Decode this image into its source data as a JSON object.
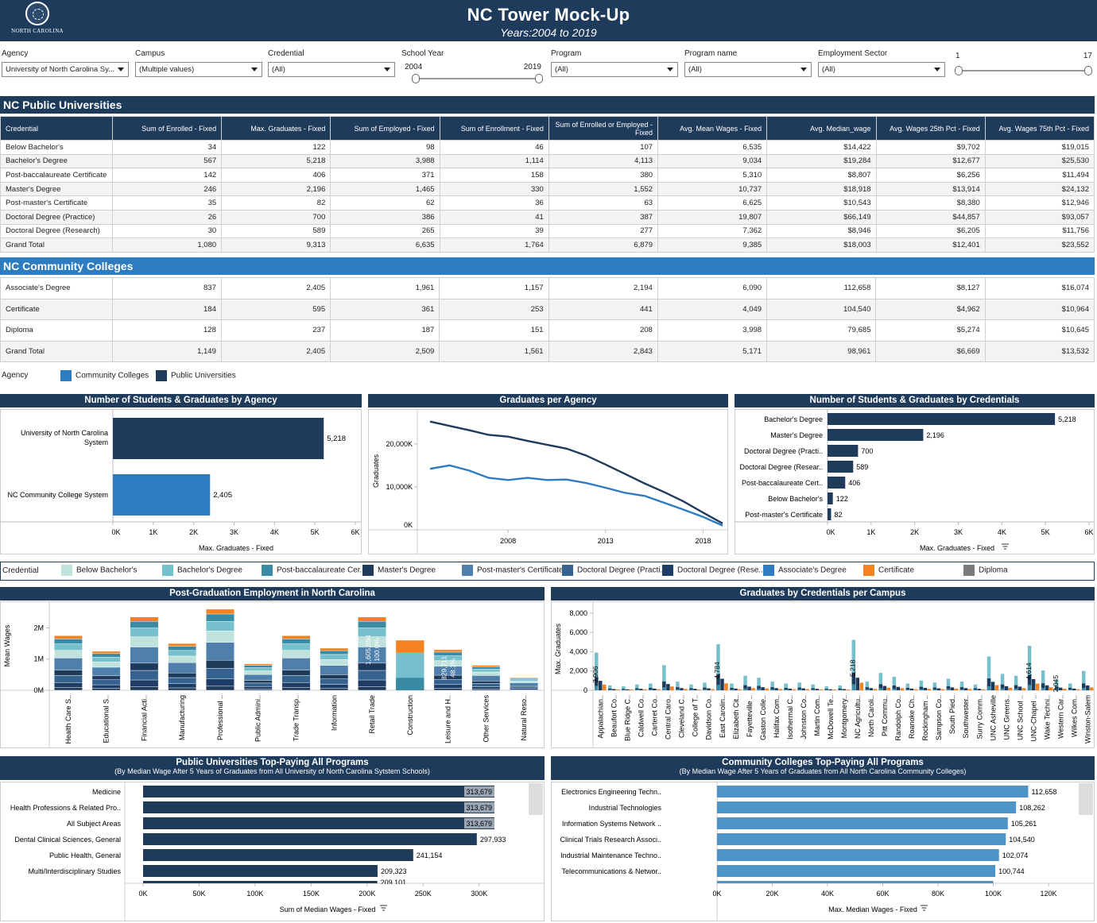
{
  "header": {
    "title": "NC Tower Mock-Up",
    "subtitle": "Years:2004 to 2019",
    "seal_text": "NORTH CAROLINA"
  },
  "filters": {
    "agency": {
      "label": "Agency",
      "value": "University of North Carolina Sy..."
    },
    "campus": {
      "label": "Campus",
      "value": "(Multiple values)"
    },
    "credential": {
      "label": "Credential",
      "value": "(All)"
    },
    "school_year": {
      "label": "School Year",
      "min": "2004",
      "max": "2019"
    },
    "program": {
      "label": "Program",
      "value": "(All)"
    },
    "program_name": {
      "label": "Program name",
      "value": "(All)"
    },
    "employment_sector": {
      "label": "Employment Sector",
      "value": "(All)"
    },
    "range": {
      "min": "1",
      "max": "17"
    }
  },
  "universities": {
    "title": "NC Public Universities",
    "headers": [
      "Credential",
      "Sum of Enrolled - Fixed",
      "Max. Graduates - Fixed",
      "Sum of Employed - Fixed",
      "Sum of Enrollment - Fixed",
      "Sum of Enrolled or Employed - Fixed",
      "Avg. Mean Wages - Fixed",
      "Avg. Median_wage",
      "Avg. Wages 25th Pct - Fixed",
      "Avg. Wages 75th Pct - Fixed"
    ],
    "rows": [
      [
        "Below Bachelor's",
        "34",
        "122",
        "98",
        "46",
        "107",
        "6,535",
        "$14,422",
        "$9,702",
        "$19,015"
      ],
      [
        "Bachelor's Degree",
        "567",
        "5,218",
        "3,988",
        "1,114",
        "4,113",
        "9,034",
        "$19,284",
        "$12,677",
        "$25,530"
      ],
      [
        "Post-baccalaureate Certificate",
        "142",
        "406",
        "371",
        "158",
        "380",
        "5,310",
        "$8,807",
        "$6,256",
        "$11,494"
      ],
      [
        "Master's Degree",
        "246",
        "2,196",
        "1,465",
        "330",
        "1,552",
        "10,737",
        "$18,918",
        "$13,914",
        "$24,132"
      ],
      [
        "Post-master's Certificate",
        "35",
        "82",
        "62",
        "36",
        "63",
        "6,625",
        "$10,543",
        "$8,380",
        "$12,946"
      ],
      [
        "Doctoral Degree (Practice)",
        "26",
        "700",
        "386",
        "41",
        "387",
        "19,807",
        "$66,149",
        "$44,857",
        "$93,057"
      ],
      [
        "Doctoral Degree (Research)",
        "30",
        "589",
        "265",
        "39",
        "277",
        "7,362",
        "$8,946",
        "$6,205",
        "$11,756"
      ],
      [
        "Grand Total",
        "1,080",
        "9,313",
        "6,635",
        "1,764",
        "6,879",
        "9,385",
        "$18,003",
        "$12,401",
        "$23,552"
      ]
    ]
  },
  "colleges": {
    "title": "NC Community Colleges",
    "rows": [
      [
        "Associate's Degree",
        "837",
        "2,405",
        "1,961",
        "1,157",
        "2,194",
        "6,090",
        "112,658",
        "$8,127",
        "$16,074"
      ],
      [
        "Certificate",
        "184",
        "595",
        "361",
        "253",
        "441",
        "4,049",
        "104,540",
        "$4,962",
        "$10,964"
      ],
      [
        "Diploma",
        "128",
        "237",
        "187",
        "151",
        "208",
        "3,998",
        "79,685",
        "$5,274",
        "$10,645"
      ],
      [
        "Grand Total",
        "1,149",
        "2,405",
        "2,509",
        "1,561",
        "2,843",
        "5,171",
        "98,961",
        "$6,669",
        "$13,532"
      ]
    ]
  },
  "agency_legend": {
    "label": "Agency",
    "items": [
      {
        "name": "Community Colleges",
        "color": "#2e7cc0"
      },
      {
        "name": "Public Universities",
        "color": "#1f3b5c"
      }
    ]
  },
  "credential_legend": {
    "label": "Credential",
    "items": [
      {
        "name": "Below Bachelor's",
        "color": "#bfe3dc"
      },
      {
        "name": "Bachelor's Degree",
        "color": "#76bfcc"
      },
      {
        "name": "Post-baccalaureate Cer...",
        "color": "#3a8aa4"
      },
      {
        "name": "Master's Degree",
        "color": "#1f3b5c"
      },
      {
        "name": "Post-master's Certificate",
        "color": "#4f7fab"
      },
      {
        "name": "Doctoral Degree (Practi...",
        "color": "#35628f"
      },
      {
        "name": "Doctoral Degree (Rese...",
        "color": "#1e3d66"
      },
      {
        "name": "Associate's Degree",
        "color": "#2e7cc0"
      },
      {
        "name": "Certificate",
        "color": "#f58220"
      },
      {
        "name": "Diploma",
        "color": "#7a7a7a"
      }
    ]
  },
  "chart_data": [
    {
      "id": "agency",
      "type": "bar",
      "title": "Number of Students & Graduates by Agency",
      "orientation": "horizontal",
      "categories": [
        "University of North Carolina System",
        "NC Community College System"
      ],
      "values": [
        5218,
        2405
      ],
      "labels": [
        "5,218",
        "2,405"
      ],
      "colors": [
        "#1f3b5c",
        "#2e7cc0"
      ],
      "xlabel": "Max. Graduates - Fixed",
      "ticks": [
        "0K",
        "1K",
        "2K",
        "3K",
        "4K",
        "5K",
        "6K"
      ],
      "xlim": [
        0,
        6000
      ]
    },
    {
      "id": "graduates",
      "type": "line",
      "title": "Graduates per Agency",
      "ylabel": "Graduates",
      "x": [
        2004,
        2005,
        2006,
        2007,
        2008,
        2009,
        2010,
        2011,
        2012,
        2013,
        2014,
        2015,
        2016,
        2017,
        2018,
        2019
      ],
      "series": [
        {
          "name": "Public Universities",
          "color": "#1f3b5c",
          "values": [
            25200,
            24200,
            23200,
            22100,
            21700,
            20700,
            19800,
            18900,
            17300,
            15200,
            13000,
            10800,
            8800,
            6600,
            4000,
            1500
          ]
        },
        {
          "name": "Community Colleges",
          "color": "#2e7cc0",
          "values": [
            14200,
            15000,
            13800,
            12100,
            11600,
            12100,
            11600,
            11700,
            10900,
            9800,
            8600,
            7900,
            6300,
            4700,
            3000,
            1000
          ]
        }
      ],
      "yticks": [
        "20,000K",
        "10,000K",
        "0K"
      ],
      "ytickvals": [
        20000,
        10000,
        0
      ],
      "xticks": [
        "2008",
        "2013",
        "2018"
      ],
      "ylim": [
        0,
        27000
      ]
    },
    {
      "id": "credentials",
      "type": "bar",
      "title": "Number of Students & Graduates by Credentials",
      "orientation": "horizontal",
      "categories": [
        "Bachelor's Degree",
        "Master's Degree",
        "Doctoral Degree (Practi..",
        "Doctoral Degree (Resear..",
        "Post-baccalaureate Cert..",
        "Below Bachelor's",
        "Post-master's Certificate"
      ],
      "values": [
        5218,
        2196,
        700,
        589,
        406,
        122,
        82
      ],
      "labels": [
        "5,218",
        "2,196",
        "700",
        "589",
        "406",
        "122",
        "82"
      ],
      "xlabel": "Max. Graduates - Fixed",
      "ticks": [
        "0K",
        "1K",
        "2K",
        "3K",
        "4K",
        "5K",
        "6K"
      ],
      "xlim": [
        0,
        6000
      ],
      "color": "#1f3b5c"
    },
    {
      "id": "employment",
      "type": "bar",
      "stacked": true,
      "title": "Post-Graduation Employment in North Carolina",
      "ylabel": "Mean Wages",
      "categories": [
        "Health Care S..",
        "Educational S..",
        "Financial Acti..",
        "Manufacturing",
        "Professional ..",
        "Public Admini..",
        "Trade Transp..",
        "Information",
        "Retail Trade",
        "Construction",
        "Leisure and H..",
        "Other Services",
        "Natural Reso.."
      ],
      "totals": [
        1.75,
        1.25,
        2.35,
        1.5,
        2.6,
        0.85,
        1.75,
        1.35,
        2.35,
        1.6,
        1.3,
        0.8,
        0.4
      ],
      "annotations": [
        {
          "category": "Retail Trade",
          "text1": "1,605,594",
          "text2": "100.0%"
        },
        {
          "category": "Leisure and H..",
          "text1": "829,711",
          "text2": "48.1%"
        }
      ],
      "yticks": [
        "2M",
        "1M",
        "0M"
      ],
      "ytickvals": [
        2,
        1,
        0
      ],
      "ylim": [
        0,
        2.7
      ]
    },
    {
      "id": "campus",
      "type": "bar",
      "stacked": true,
      "title": "Graduates by Credentials per Campus",
      "ylabel": "Max. Graduates",
      "categories": [
        "Appalachian..",
        "Beaufort Co..",
        "Blue Ridge C..",
        "Caldwell Co..",
        "Carteret Co..",
        "Central Caro..",
        "Cleveland C..",
        "College of T..",
        "Davidson Co..",
        "East Carolin..",
        "Elizabeth Cit..",
        "Fayetteville ..",
        "Gaston Colle..",
        "Halifax Com..",
        "Isothermal C..",
        "Johnston Co..",
        "Martin Com..",
        "McDowell Te..",
        "Montgomery..",
        "NC Agricultu..",
        "North Caroli..",
        "Pitt Commu..",
        "Randolph Co..",
        "Roanoke Ch..",
        "Rockingham ..",
        "Sampson Co..",
        "South Pied..",
        "Southwester..",
        "Surry Comm..",
        "UNC Asheville",
        "UNC Greens..",
        "UNC School ..",
        "UNC-Chapel ..",
        "Wake Techni..",
        "Western Car..",
        "Wilkes Com..",
        "Winston-Salem"
      ],
      "annotations": [
        {
          "label": "3,906",
          "value": 3906
        },
        {
          "label": "4,784",
          "value": 4784
        },
        {
          "label": "5,218",
          "value": 5218
        },
        {
          "label": "4,614",
          "value": 4614
        },
        {
          "label": "2,045",
          "value": 2045
        }
      ],
      "yticks": [
        "8,000",
        "6,000",
        "4,000",
        "2,000",
        "0"
      ],
      "ytickvals": [
        8000,
        6000,
        4000,
        2000,
        0
      ],
      "ylim": [
        0,
        8400
      ]
    },
    {
      "id": "univ_pay",
      "type": "bar",
      "orientation": "horizontal",
      "title": "Public Universities Top-Paying All Programs",
      "subtitle": "(By Median Wage After 5 Years of  Graduates from All University of North Carolina Sytstem Schools)",
      "categories": [
        "Medicine",
        "Health Professions & Related Pro..",
        "All Subject Areas",
        "Dental Clinical Sciences, General",
        "Public Health, General",
        "Multi/Interdisciplinary Studies"
      ],
      "values": [
        313679,
        313679,
        313679,
        297933,
        241154,
        209323
      ],
      "labels": [
        "313,679",
        "313,679",
        "313,679",
        "297,933",
        "241,154",
        "209,323"
      ],
      "partial_label": "209,101",
      "xlabel": "Sum of Median Wages - Fixed",
      "ticks": [
        "0K",
        "50K",
        "100K",
        "150K",
        "200K",
        "250K",
        "300K"
      ],
      "xlim": [
        0,
        330000
      ],
      "color": "#1f3b5c"
    },
    {
      "id": "cc_pay",
      "type": "bar",
      "orientation": "horizontal",
      "title": "Community Colleges Top-Paying All Programs",
      "subtitle": "(By Median Wage After 5 Years of Graduates from All North Carolina Community Colleges)",
      "categories": [
        "Electronics Engineering Techn..",
        "Industrial Technologies",
        "Information Systems Network ..",
        "Clinical Trials Research Associ..",
        "Industrial Maintenance Techno..",
        "Telecommunications & Networ.."
      ],
      "values": [
        112658,
        108262,
        105261,
        104540,
        102074,
        100744
      ],
      "labels": [
        "112,658",
        "108,262",
        "105,261",
        "104,540",
        "102,074",
        "100,744"
      ],
      "xlabel": "Max. Median Wages - Fixed",
      "ticks": [
        "0K",
        "20K",
        "40K",
        "60K",
        "80K",
        "100K",
        "120K"
      ],
      "xlim": [
        0,
        130000
      ],
      "color": "#4f94c8"
    }
  ]
}
